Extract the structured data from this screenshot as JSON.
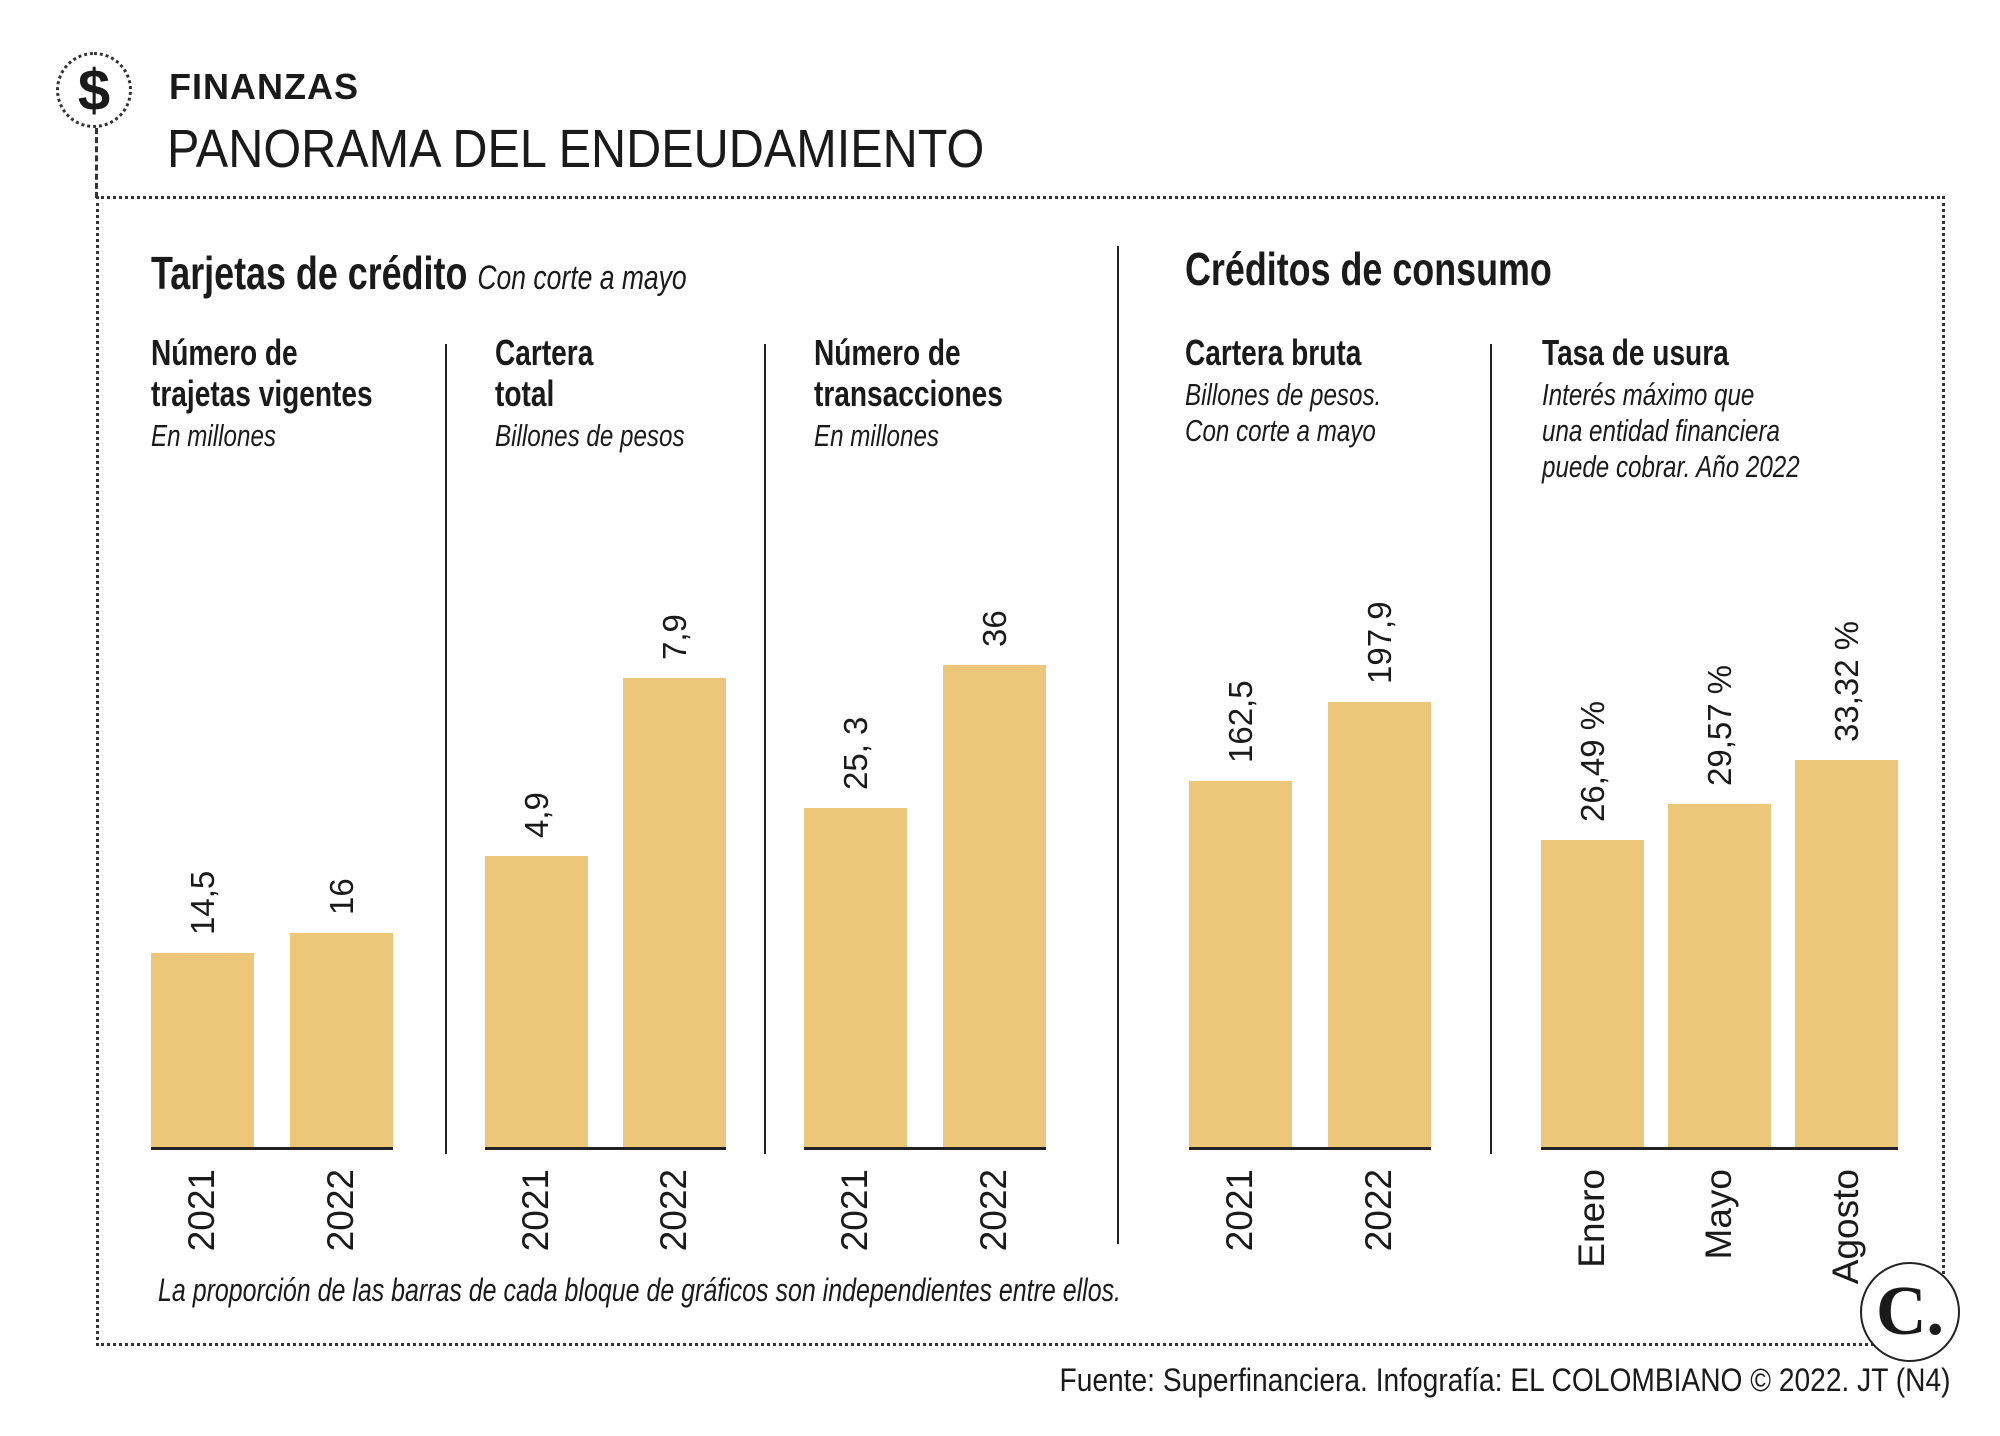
{
  "header": {
    "kicker": "FINANZAS",
    "title": "PANORAMA DEL ENDEUDAMIENTO",
    "icon": "dollar-icon"
  },
  "sections": [
    {
      "title": "Tarjetas de crédito",
      "subtitle": "Con corte a mayo"
    },
    {
      "title": "Créditos de consumo",
      "subtitle": ""
    }
  ],
  "chart_data": [
    {
      "type": "bar",
      "title_lines": [
        "Número de",
        "trajetas vigentes"
      ],
      "unit": "En millones",
      "categories": [
        "2021",
        "2022"
      ],
      "values": [
        14.5,
        16
      ],
      "labels": [
        "14,5",
        "16"
      ]
    },
    {
      "type": "bar",
      "title_lines": [
        "Cartera",
        "total"
      ],
      "unit": "Billones de pesos",
      "categories": [
        "2021",
        "2022"
      ],
      "values": [
        4.9,
        7.9
      ],
      "labels": [
        "4,9",
        "7,9"
      ]
    },
    {
      "type": "bar",
      "title_lines": [
        "Número de",
        "transacciones"
      ],
      "unit": "En millones",
      "categories": [
        "2021",
        "2022"
      ],
      "values": [
        25.3,
        36
      ],
      "labels": [
        "25, 3",
        "36"
      ]
    },
    {
      "type": "bar",
      "title_lines": [
        "Cartera bruta"
      ],
      "unit_lines": [
        "Billones de pesos.",
        "Con corte a mayo"
      ],
      "categories": [
        "2021",
        "2022"
      ],
      "values": [
        162.5,
        197.9
      ],
      "labels": [
        "162,5",
        "197,9"
      ]
    },
    {
      "type": "bar",
      "title_lines": [
        "Tasa de usura"
      ],
      "unit_lines": [
        "Interés máximo que",
        "una entidad financiera",
        "puede cobrar. Año 2022"
      ],
      "categories": [
        "Enero",
        "Mayo",
        "Agosto"
      ],
      "values": [
        26.49,
        29.57,
        33.32
      ],
      "labels": [
        "26,49 %",
        "29,57 %",
        "33,32 %"
      ]
    }
  ],
  "colors": {
    "bar": "#ECC679",
    "text": "#1a1a1a"
  },
  "note": "La proporción de las barras de cada bloque de gráficos son independientes entre ellos.",
  "footer": "Fuente: Superfinanciera. Infografía: EL COLOMBIANO © 2022. JT (N4)",
  "logo": "C."
}
